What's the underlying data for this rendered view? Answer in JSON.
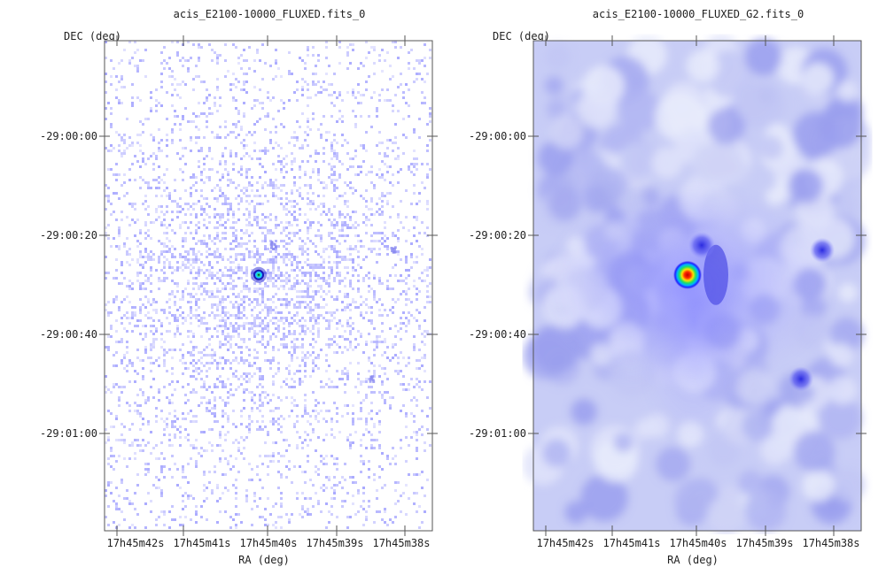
{
  "chart_data": [
    {
      "type": "heatmap",
      "title": "acis_E2100-10000_FLUXED.fits_0",
      "xlabel": "RA (deg)",
      "ylabel": "DEC (deg)",
      "x_ticks": [
        "17h45m42s",
        "17h45m41s",
        "17h45m40s",
        "17h45m39s",
        "17h45m38s"
      ],
      "y_ticks": [
        "-29:00:00",
        "-29:00:20",
        "-29:00:40",
        "-29:01:00"
      ],
      "colormap": "white-blue-cyan-green-yellow-red",
      "smoothing": "none",
      "sources": [
        {
          "ra": "17h45m40.0s",
          "dec": "-29:00:28",
          "intensity": 1.0
        },
        {
          "ra": "17h45m39.8s",
          "dec": "-29:00:22",
          "intensity": 0.25
        },
        {
          "ra": "17h45m38.1s",
          "dec": "-29:00:23",
          "intensity": 0.2
        },
        {
          "ra": "17h45m38.4s",
          "dec": "-29:00:49",
          "intensity": 0.15
        }
      ]
    },
    {
      "type": "heatmap",
      "title": "acis_E2100-10000_FLUXED_G2.fits_0",
      "xlabel": "RA (deg)",
      "ylabel": "DEC (deg)",
      "x_ticks": [
        "17h45m42s",
        "17h45m41s",
        "17h45m40s",
        "17h45m39s",
        "17h45m38s"
      ],
      "y_ticks": [
        "-29:00:00",
        "-29:00:20",
        "-29:00:40",
        "-29:01:00"
      ],
      "colormap": "white-blue-cyan-green-yellow-red",
      "smoothing": "gaussian",
      "sources": [
        {
          "ra": "17h45m40.0s",
          "dec": "-29:00:28",
          "intensity": 1.0
        },
        {
          "ra": "17h45m39.8s",
          "dec": "-29:00:22",
          "intensity": 0.35
        },
        {
          "ra": "17h45m38.1s",
          "dec": "-29:00:23",
          "intensity": 0.3
        },
        {
          "ra": "17h45m38.4s",
          "dec": "-29:00:49",
          "intensity": 0.3
        }
      ]
    }
  ],
  "colors": {
    "background": "#ffffff",
    "axis": "#555555",
    "text": "#222222"
  }
}
